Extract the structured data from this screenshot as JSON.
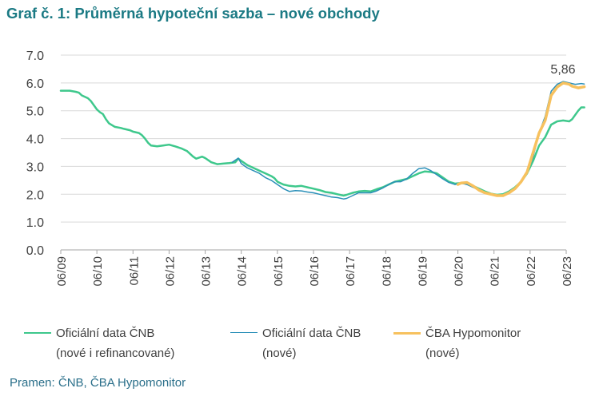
{
  "chart_data": {
    "type": "line",
    "title": "Graf č. 1: Průměrná hypoteční sazba – nové obchody",
    "source": "Pramen: ČNB, ČBA Hypomonitor",
    "y_ticks": [
      "7.0",
      "6.0",
      "5.0",
      "4.0",
      "3.0",
      "2.0",
      "1.0",
      "0.0"
    ],
    "ylim": [
      0,
      7
    ],
    "x_tick_labels": [
      "06/09",
      "06/10",
      "06/11",
      "06/12",
      "06/13",
      "06/14",
      "06/15",
      "06/16",
      "06/17",
      "06/18",
      "06/19",
      "06/20",
      "06/21",
      "06/22",
      "06/23"
    ],
    "annotation": "5,86",
    "grid": "horizontal",
    "legend_position": "bottom",
    "series": [
      {
        "name": "Oficiální data ČNB (nové i refinancované)",
        "legend_line1": "Oficiální data ČNB",
        "legend_line2": "(nové i refinancované)",
        "color": "#3ec88c",
        "points": [
          [
            0,
            5.72
          ],
          [
            3,
            5.72
          ],
          [
            5,
            5.68
          ],
          [
            6,
            5.65
          ],
          [
            7,
            5.55
          ],
          [
            9,
            5.45
          ],
          [
            10,
            5.35
          ],
          [
            12,
            5.05
          ],
          [
            13,
            4.95
          ],
          [
            14,
            4.88
          ],
          [
            15,
            4.7
          ],
          [
            16,
            4.55
          ],
          [
            18,
            4.42
          ],
          [
            20,
            4.38
          ],
          [
            21,
            4.35
          ],
          [
            23,
            4.3
          ],
          [
            24,
            4.25
          ],
          [
            26,
            4.2
          ],
          [
            27,
            4.12
          ],
          [
            28,
            4.0
          ],
          [
            29,
            3.85
          ],
          [
            30,
            3.75
          ],
          [
            32,
            3.72
          ],
          [
            34,
            3.75
          ],
          [
            36,
            3.78
          ],
          [
            38,
            3.72
          ],
          [
            40,
            3.65
          ],
          [
            42,
            3.55
          ],
          [
            44,
            3.35
          ],
          [
            45,
            3.28
          ],
          [
            47,
            3.35
          ],
          [
            48,
            3.3
          ],
          [
            50,
            3.15
          ],
          [
            52,
            3.08
          ],
          [
            54,
            3.1
          ],
          [
            56,
            3.12
          ],
          [
            58,
            3.15
          ],
          [
            59,
            3.28
          ],
          [
            60,
            3.2
          ],
          [
            62,
            3.05
          ],
          [
            64,
            2.95
          ],
          [
            66,
            2.85
          ],
          [
            68,
            2.75
          ],
          [
            70,
            2.65
          ],
          [
            71,
            2.58
          ],
          [
            72,
            2.45
          ],
          [
            74,
            2.35
          ],
          [
            76,
            2.3
          ],
          [
            78,
            2.28
          ],
          [
            80,
            2.3
          ],
          [
            82,
            2.25
          ],
          [
            84,
            2.2
          ],
          [
            86,
            2.15
          ],
          [
            88,
            2.08
          ],
          [
            90,
            2.05
          ],
          [
            92,
            2.0
          ],
          [
            94,
            1.95
          ],
          [
            95,
            1.98
          ],
          [
            97,
            2.05
          ],
          [
            99,
            2.1
          ],
          [
            101,
            2.12
          ],
          [
            103,
            2.1
          ],
          [
            105,
            2.18
          ],
          [
            107,
            2.25
          ],
          [
            109,
            2.35
          ],
          [
            111,
            2.45
          ],
          [
            113,
            2.5
          ],
          [
            115,
            2.55
          ],
          [
            117,
            2.65
          ],
          [
            119,
            2.75
          ],
          [
            121,
            2.82
          ],
          [
            123,
            2.8
          ],
          [
            125,
            2.75
          ],
          [
            127,
            2.6
          ],
          [
            129,
            2.45
          ],
          [
            131,
            2.38
          ],
          [
            133,
            2.4
          ],
          [
            135,
            2.38
          ],
          [
            137,
            2.3
          ],
          [
            139,
            2.2
          ],
          [
            141,
            2.1
          ],
          [
            143,
            2.02
          ],
          [
            145,
            1.98
          ],
          [
            147,
            2.0
          ],
          [
            149,
            2.1
          ],
          [
            151,
            2.25
          ],
          [
            153,
            2.45
          ],
          [
            155,
            2.75
          ],
          [
            157,
            3.2
          ],
          [
            159,
            3.75
          ],
          [
            161,
            4.05
          ],
          [
            163,
            4.5
          ],
          [
            165,
            4.62
          ],
          [
            167,
            4.65
          ],
          [
            169,
            4.62
          ],
          [
            170,
            4.7
          ],
          [
            172,
            5.0
          ],
          [
            173,
            5.12
          ],
          [
            174,
            5.12
          ]
        ]
      },
      {
        "name": "Oficiální data ČNB (nové)",
        "legend_line1": "Oficiální data ČNB",
        "legend_line2": "(nové)",
        "color": "#2a8fb8",
        "points": [
          [
            57,
            3.15
          ],
          [
            59,
            3.3
          ],
          [
            60,
            3.1
          ],
          [
            62,
            2.95
          ],
          [
            64,
            2.85
          ],
          [
            66,
            2.75
          ],
          [
            68,
            2.6
          ],
          [
            70,
            2.5
          ],
          [
            72,
            2.35
          ],
          [
            74,
            2.2
          ],
          [
            76,
            2.1
          ],
          [
            78,
            2.13
          ],
          [
            80,
            2.12
          ],
          [
            82,
            2.08
          ],
          [
            84,
            2.05
          ],
          [
            86,
            2.0
          ],
          [
            88,
            1.95
          ],
          [
            90,
            1.9
          ],
          [
            92,
            1.88
          ],
          [
            94,
            1.83
          ],
          [
            95,
            1.85
          ],
          [
            97,
            1.95
          ],
          [
            99,
            2.05
          ],
          [
            101,
            2.05
          ],
          [
            103,
            2.05
          ],
          [
            105,
            2.12
          ],
          [
            107,
            2.22
          ],
          [
            109,
            2.35
          ],
          [
            111,
            2.45
          ],
          [
            113,
            2.45
          ],
          [
            115,
            2.55
          ],
          [
            117,
            2.75
          ],
          [
            119,
            2.92
          ],
          [
            121,
            2.95
          ],
          [
            123,
            2.85
          ],
          [
            125,
            2.7
          ],
          [
            127,
            2.55
          ],
          [
            129,
            2.42
          ],
          [
            131,
            2.35
          ],
          [
            133,
            2.4
          ],
          [
            135,
            2.35
          ],
          [
            137,
            2.25
          ],
          [
            139,
            2.15
          ],
          [
            141,
            2.05
          ],
          [
            143,
            2.0
          ],
          [
            145,
            1.95
          ],
          [
            147,
            1.97
          ],
          [
            149,
            2.05
          ],
          [
            151,
            2.2
          ],
          [
            153,
            2.45
          ],
          [
            155,
            2.75
          ],
          [
            157,
            3.35
          ],
          [
            159,
            4.2
          ],
          [
            161,
            4.8
          ],
          [
            163,
            5.7
          ],
          [
            165,
            5.95
          ],
          [
            167,
            6.05
          ],
          [
            169,
            6.0
          ],
          [
            171,
            5.95
          ],
          [
            173,
            5.98
          ],
          [
            174,
            5.96
          ]
        ]
      },
      {
        "name": "ČBA Hypomonitor (nové)",
        "legend_line1": "ČBA Hypomonitor",
        "legend_line2": "(nové)",
        "color": "#f7c15e",
        "points": [
          [
            132,
            2.35
          ],
          [
            133,
            2.4
          ],
          [
            135,
            2.42
          ],
          [
            137,
            2.3
          ],
          [
            139,
            2.15
          ],
          [
            141,
            2.05
          ],
          [
            143,
            2.0
          ],
          [
            145,
            1.95
          ],
          [
            147,
            1.95
          ],
          [
            149,
            2.05
          ],
          [
            151,
            2.2
          ],
          [
            153,
            2.45
          ],
          [
            155,
            2.8
          ],
          [
            157,
            3.5
          ],
          [
            159,
            4.2
          ],
          [
            161,
            4.65
          ],
          [
            163,
            5.55
          ],
          [
            165,
            5.85
          ],
          [
            167,
            6.0
          ],
          [
            169,
            5.95
          ],
          [
            170,
            5.88
          ],
          [
            172,
            5.82
          ],
          [
            174,
            5.86
          ]
        ]
      }
    ]
  }
}
